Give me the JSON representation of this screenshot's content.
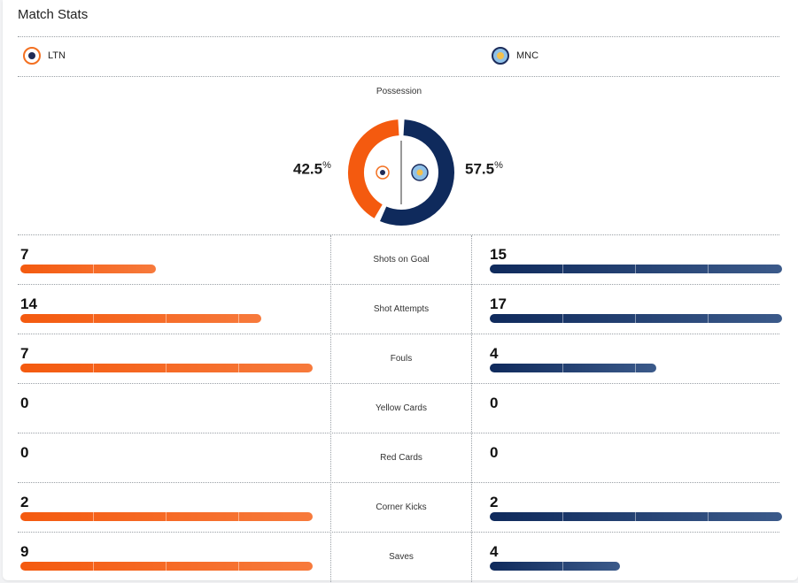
{
  "title": "Match Stats",
  "teams": {
    "home": {
      "abbr": "LTN",
      "color": "#f45a0f"
    },
    "away": {
      "abbr": "MNC",
      "color": "#0f2a5c"
    }
  },
  "possession": {
    "label": "Possession",
    "home_value": "42.5",
    "away_value": "57.5",
    "unit": "%",
    "home_fraction": 0.425,
    "away_fraction": 0.575
  },
  "stats": [
    {
      "label": "Shots on Goal",
      "home": "7",
      "away": "15",
      "home_bar": 0.465,
      "away_bar": 1.0
    },
    {
      "label": "Shot Attempts",
      "home": "14",
      "away": "17",
      "home_bar": 0.824,
      "away_bar": 1.0
    },
    {
      "label": "Fouls",
      "home": "7",
      "away": "4",
      "home_bar": 1.0,
      "away_bar": 0.571
    },
    {
      "label": "Yellow Cards",
      "home": "0",
      "away": "0",
      "home_bar": 0,
      "away_bar": 0
    },
    {
      "label": "Red Cards",
      "home": "0",
      "away": "0",
      "home_bar": 0,
      "away_bar": 0
    },
    {
      "label": "Corner Kicks",
      "home": "2",
      "away": "2",
      "home_bar": 1.0,
      "away_bar": 1.0
    },
    {
      "label": "Saves",
      "home": "9",
      "away": "4",
      "home_bar": 1.0,
      "away_bar": 0.444
    }
  ]
}
